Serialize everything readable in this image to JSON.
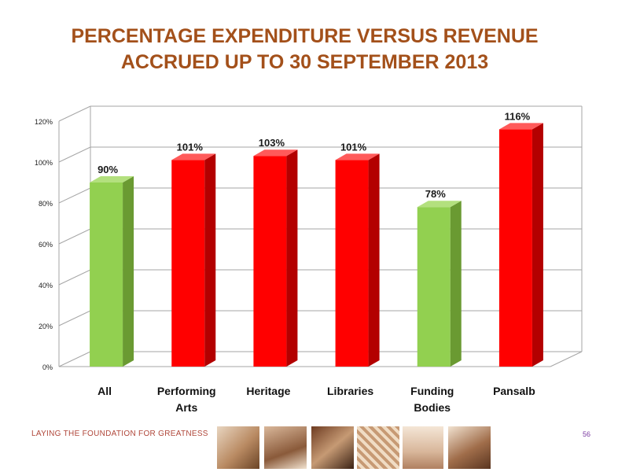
{
  "title_line1": "PERCENTAGE EXPENDITURE VERSUS REVENUE",
  "title_line2": "ACCRUED UP TO 30 SEPTEMBER 2013",
  "footer": {
    "tagline": "LAYING THE FOUNDATION FOR GREATNESS",
    "page_number": "56"
  },
  "colors": {
    "title": "#a3501a",
    "green_bar": "#92d050",
    "red_bar": "#ff0000",
    "gridline": "#a6a6a6"
  },
  "chart_data": {
    "type": "bar",
    "style": "3d-column",
    "categories": [
      "All",
      "Performing Arts",
      "Heritage",
      "Libraries",
      "Funding Bodies",
      "Pansalb"
    ],
    "values": [
      90,
      101,
      103,
      101,
      78,
      116
    ],
    "data_labels": [
      "90%",
      "101%",
      "103%",
      "101%",
      "78%",
      "116%"
    ],
    "bar_colors": [
      "green",
      "red",
      "red",
      "red",
      "green",
      "red"
    ],
    "y_ticks": [
      0,
      20,
      40,
      60,
      80,
      100,
      120
    ],
    "y_tick_labels": [
      "0%",
      "20%",
      "40%",
      "60%",
      "80%",
      "100%",
      "120%"
    ],
    "ylim": [
      0,
      120
    ],
    "unit": "%",
    "grid": true,
    "legend": false,
    "title": "",
    "xlabel": "",
    "ylabel": ""
  }
}
